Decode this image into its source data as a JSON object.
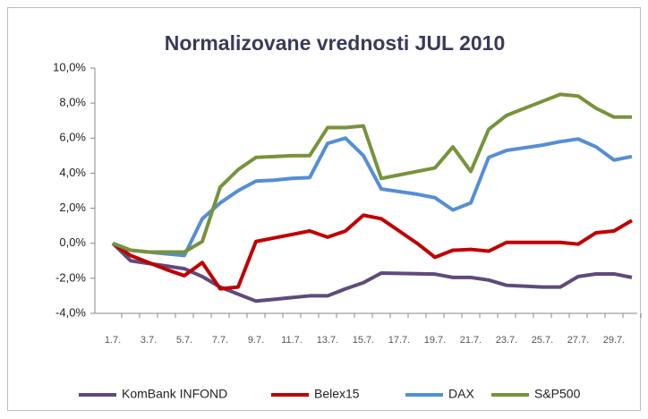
{
  "chart_data": {
    "type": "line",
    "title": "Normalizovane vrednosti JUL 2010",
    "categories": [
      "1.7.",
      null,
      "3.7.",
      null,
      "5.7.",
      null,
      "7.7.",
      null,
      "9.7.",
      null,
      "11.7.",
      null,
      "13.7.",
      null,
      "15.7.",
      null,
      "17.7.",
      null,
      "19.7.",
      null,
      "21.7.",
      null,
      "23.7.",
      null,
      "25.7.",
      null,
      "27.7.",
      null,
      "29.7.",
      null
    ],
    "series": [
      {
        "name": "KomBank INFOND",
        "color": "#604a7b",
        "values": [
          0,
          -1.0,
          -1.15,
          -1.3,
          -1.45,
          -1.9,
          -2.5,
          -2.9,
          -3.3,
          -3.2,
          -3.1,
          -3.0,
          -3.0,
          -2.6,
          -2.25,
          -1.7,
          -1.72,
          -1.74,
          -1.76,
          -1.95,
          -1.95,
          -2.1,
          -2.4,
          -2.45,
          -2.5,
          -2.5,
          -1.9,
          -1.75,
          -1.75,
          -1.95
        ]
      },
      {
        "name": "Belex15",
        "color": "#c00000",
        "values": [
          0,
          -0.7,
          -1.1,
          -1.5,
          -1.85,
          -1.1,
          -2.6,
          -2.5,
          0.1,
          0.3,
          0.5,
          0.7,
          0.35,
          0.7,
          1.6,
          1.4,
          0.7,
          0,
          -0.8,
          -0.4,
          -0.35,
          -0.45,
          0.05,
          0.05,
          0.05,
          0.05,
          -0.05,
          0.6,
          0.7,
          1.3
        ]
      },
      {
        "name": "DAX",
        "color": "#558ed5",
        "values": [
          0,
          -0.4,
          -0.5,
          -0.6,
          -0.7,
          1.4,
          2.3,
          3.0,
          3.55,
          3.6,
          3.7,
          3.75,
          5.7,
          6.0,
          5.0,
          3.1,
          2.95,
          2.8,
          2.6,
          1.9,
          2.3,
          4.9,
          5.3,
          5.45,
          5.6,
          5.8,
          5.95,
          5.5,
          4.75,
          4.95
        ]
      },
      {
        "name": "S&P500",
        "color": "#77933c",
        "values": [
          0,
          -0.4,
          -0.5,
          -0.5,
          -0.5,
          0.1,
          3.2,
          4.2,
          4.9,
          4.95,
          5.0,
          5.0,
          6.6,
          6.6,
          6.7,
          3.7,
          3.9,
          4.1,
          4.3,
          5.5,
          4.1,
          6.5,
          7.3,
          7.7,
          8.1,
          8.5,
          8.4,
          7.7,
          7.2,
          7.2
        ]
      }
    ],
    "ylim": [
      -4,
      10
    ],
    "yticks": [
      {
        "value": -4,
        "label": "-4,0%"
      },
      {
        "value": -2,
        "label": "-2,0%"
      },
      {
        "value": 0,
        "label": "0,0%"
      },
      {
        "value": 2,
        "label": "2,0%"
      },
      {
        "value": 4,
        "label": "4,0%"
      },
      {
        "value": 6,
        "label": "6,0%"
      },
      {
        "value": 8,
        "label": "8,0%"
      },
      {
        "value": 10,
        "label": "10,0%"
      }
    ],
    "legend": "bottom"
  }
}
